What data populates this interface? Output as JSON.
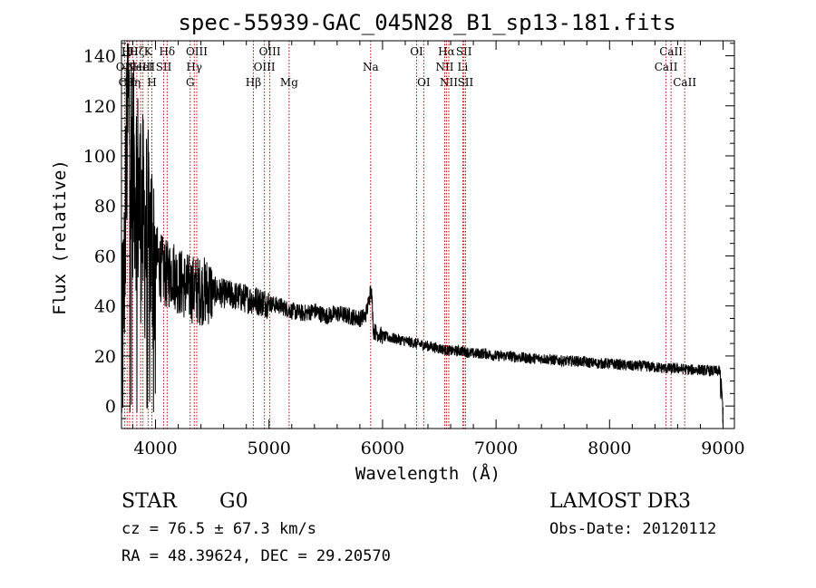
{
  "chart_data": {
    "type": "line",
    "title": "spec-55939-GAC_045N28_B1_sp13-181.fits",
    "xlabel": "Wavelength (Å)",
    "ylabel": "Flux (relative)",
    "xlim": [
      3700,
      9100
    ],
    "ylim": [
      -9,
      146
    ],
    "x_ticks": [
      4000,
      5000,
      6000,
      7000,
      8000,
      9000
    ],
    "y_ticks": [
      0,
      20,
      40,
      60,
      80,
      100,
      120,
      140
    ],
    "x_tick_labels": [
      "4000",
      "5000",
      "6000",
      "7000",
      "8000",
      "9000"
    ],
    "y_tick_labels": [
      "0",
      "20",
      "40",
      "60",
      "80",
      "100",
      "120",
      "140"
    ],
    "grid": false,
    "series": [
      {
        "name": "spectrum",
        "anchors": [
          [
            3700,
            12
          ],
          [
            3720,
            40
          ],
          [
            3740,
            95
          ],
          [
            3760,
            120
          ],
          [
            3780,
            110
          ],
          [
            3800,
            95
          ],
          [
            3830,
            90
          ],
          [
            3860,
            80
          ],
          [
            3900,
            70
          ],
          [
            3950,
            65
          ],
          [
            4000,
            60
          ],
          [
            4050,
            55
          ],
          [
            4100,
            52
          ],
          [
            4150,
            54
          ],
          [
            4200,
            50
          ],
          [
            4300,
            47
          ],
          [
            4400,
            46
          ],
          [
            4500,
            46
          ],
          [
            4600,
            45
          ],
          [
            4700,
            44
          ],
          [
            4800,
            43
          ],
          [
            4900,
            42
          ],
          [
            5000,
            41
          ],
          [
            5100,
            40
          ],
          [
            5200,
            38
          ],
          [
            5300,
            37
          ],
          [
            5400,
            38
          ],
          [
            5500,
            36
          ],
          [
            5600,
            37
          ],
          [
            5700,
            36
          ],
          [
            5800,
            35
          ],
          [
            5850,
            36
          ],
          [
            5880,
            42
          ],
          [
            5895,
            48
          ],
          [
            5905,
            44
          ],
          [
            5920,
            30
          ],
          [
            6000,
            28
          ],
          [
            6100,
            27
          ],
          [
            6200,
            26
          ],
          [
            6300,
            25
          ],
          [
            6400,
            24
          ],
          [
            6500,
            23
          ],
          [
            6600,
            22
          ],
          [
            6700,
            22
          ],
          [
            6800,
            21
          ],
          [
            6900,
            21
          ],
          [
            7000,
            20
          ],
          [
            7100,
            20
          ],
          [
            7200,
            19.5
          ],
          [
            7300,
            19
          ],
          [
            7400,
            19
          ],
          [
            7500,
            18.5
          ],
          [
            7600,
            18
          ],
          [
            7700,
            18
          ],
          [
            7800,
            17.5
          ],
          [
            7900,
            17
          ],
          [
            8000,
            17
          ],
          [
            8100,
            16.5
          ],
          [
            8200,
            16
          ],
          [
            8300,
            16
          ],
          [
            8400,
            15.5
          ],
          [
            8500,
            15
          ],
          [
            8600,
            15
          ],
          [
            8700,
            14.5
          ],
          [
            8800,
            14.5
          ],
          [
            8900,
            14
          ],
          [
            8970,
            14
          ],
          [
            8985,
            10
          ],
          [
            8995,
            1
          ],
          [
            9000,
            1
          ]
        ]
      }
    ],
    "line_markers": [
      {
        "wavelength": 3727,
        "label": "OII",
        "row": 1
      },
      {
        "wavelength": 3750,
        "label": "OII",
        "row": 2
      },
      {
        "wavelength": 3771,
        "label": "Hθ",
        "row": 0
      },
      {
        "wavelength": 3798,
        "label": "Hη",
        "row": 2
      },
      {
        "wavelength": 3835,
        "label": "Hζ",
        "row": 0
      },
      {
        "wavelength": 3869,
        "label": "NeIII",
        "row": 1
      },
      {
        "wavelength": 3889,
        "label": "HeI",
        "row": 1
      },
      {
        "wavelength": 3934,
        "label": "K",
        "row": 0
      },
      {
        "wavelength": 3968,
        "label": "H",
        "row": 2
      },
      {
        "wavelength": 4072,
        "label": "SII",
        "row": 1
      },
      {
        "wavelength": 4102,
        "label": "Hδ",
        "row": 0
      },
      {
        "wavelength": 4305,
        "label": "G",
        "row": 2
      },
      {
        "wavelength": 4341,
        "label": "Hγ",
        "row": 1
      },
      {
        "wavelength": 4363,
        "label": "OIII",
        "row": 0
      },
      {
        "wavelength": 4862,
        "label": "Hβ",
        "row": 2
      },
      {
        "wavelength": 4959,
        "label": "OIII",
        "row": 1
      },
      {
        "wavelength": 5007,
        "label": "OIII",
        "row": 0
      },
      {
        "wavelength": 5177,
        "label": "Mg",
        "row": 2
      },
      {
        "wavelength": 5895,
        "label": "Na",
        "row": 1
      },
      {
        "wavelength": 6300,
        "label": "OI",
        "row": 0
      },
      {
        "wavelength": 6363,
        "label": "OI",
        "row": 2
      },
      {
        "wavelength": 6548,
        "label": "NII",
        "row": 1
      },
      {
        "wavelength": 6563,
        "label": "Hα",
        "row": 0
      },
      {
        "wavelength": 6584,
        "label": "NII",
        "row": 2
      },
      {
        "wavelength": 6707,
        "label": "Li",
        "row": 1
      },
      {
        "wavelength": 6717,
        "label": "SII",
        "row": 0
      },
      {
        "wavelength": 6731,
        "label": "SII",
        "row": 2
      },
      {
        "wavelength": 8498,
        "label": "CaII",
        "row": 1
      },
      {
        "wavelength": 8542,
        "label": "CaII",
        "row": 0
      },
      {
        "wavelength": 8662,
        "label": "CaII",
        "row": 2
      }
    ],
    "marker_color": "#c00000"
  },
  "info": {
    "class_label": "STAR",
    "subclass": "G0",
    "survey": "LAMOST DR3",
    "cz": "cz = 76.5 ± 67.3 km/s",
    "obs_date": "Obs-Date: 20120112",
    "coords": "RA =  48.39624, DEC =  29.20570"
  }
}
